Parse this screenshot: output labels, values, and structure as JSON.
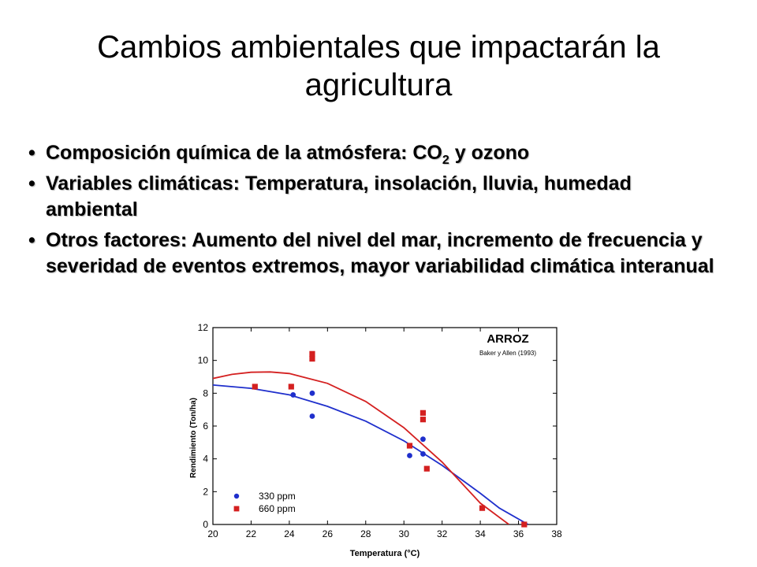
{
  "slide": {
    "title": "Cambios ambientales que impactarán la agricultura",
    "bullets": [
      {
        "pre": "Composición química de la atmósfera: CO",
        "sub": "2",
        "post": " y ozono"
      },
      {
        "pre": "Variables climáticas: Temperatura, insolación, lluvia, humedad ambiental",
        "sub": "",
        "post": ""
      },
      {
        "pre": "Otros factores: Aumento del nivel del mar, incremento de frecuencia y severidad de eventos extremos, mayor variabilidad climática interanual",
        "sub": "",
        "post": ""
      }
    ],
    "bullet_glyph": "•"
  },
  "chart_data": {
    "type": "scatter",
    "title": "ARROZ",
    "subtitle": "Baker y Allen (1993)",
    "xlabel": "Temperatura (°C)",
    "ylabel": "Rendimiento (Ton/ha)",
    "xlim": [
      20,
      38
    ],
    "ylim": [
      0,
      12
    ],
    "xticks": [
      20,
      22,
      24,
      26,
      28,
      30,
      32,
      34,
      36,
      38
    ],
    "yticks": [
      0,
      2,
      4,
      6,
      8,
      10,
      12
    ],
    "legend_position": "bottom-left",
    "series": [
      {
        "name": "330 ppm",
        "marker": "circle",
        "color": "#1f2fcc",
        "points": [
          [
            24.2,
            7.9
          ],
          [
            25.2,
            8.0
          ],
          [
            25.2,
            6.6
          ],
          [
            30.3,
            4.2
          ],
          [
            31.0,
            5.2
          ],
          [
            31.0,
            4.3
          ],
          [
            36.3,
            0.0
          ]
        ],
        "fit": [
          [
            20,
            8.5
          ],
          [
            22,
            8.3
          ],
          [
            24,
            7.9
          ],
          [
            26,
            7.2
          ],
          [
            28,
            6.3
          ],
          [
            30,
            5.1
          ],
          [
            32,
            3.6
          ],
          [
            34,
            1.9
          ],
          [
            35,
            1.0
          ],
          [
            36.5,
            0.0
          ]
        ]
      },
      {
        "name": "660 ppm",
        "marker": "square",
        "color": "#d42020",
        "points": [
          [
            22.2,
            8.4
          ],
          [
            24.1,
            8.4
          ],
          [
            25.2,
            10.4
          ],
          [
            25.2,
            10.1
          ],
          [
            30.3,
            4.8
          ],
          [
            31.0,
            6.8
          ],
          [
            31.0,
            6.4
          ],
          [
            31.2,
            3.4
          ],
          [
            34.1,
            1.0
          ],
          [
            36.3,
            0.0
          ]
        ],
        "fit": [
          [
            20,
            8.9
          ],
          [
            21,
            9.15
          ],
          [
            22,
            9.28
          ],
          [
            23,
            9.3
          ],
          [
            24,
            9.2
          ],
          [
            26,
            8.6
          ],
          [
            28,
            7.5
          ],
          [
            30,
            5.9
          ],
          [
            32,
            3.8
          ],
          [
            34,
            1.3
          ],
          [
            35.5,
            0.0
          ]
        ]
      }
    ]
  },
  "colors": {
    "chart_bg": "#ffffff",
    "plot_border": "#000000"
  }
}
